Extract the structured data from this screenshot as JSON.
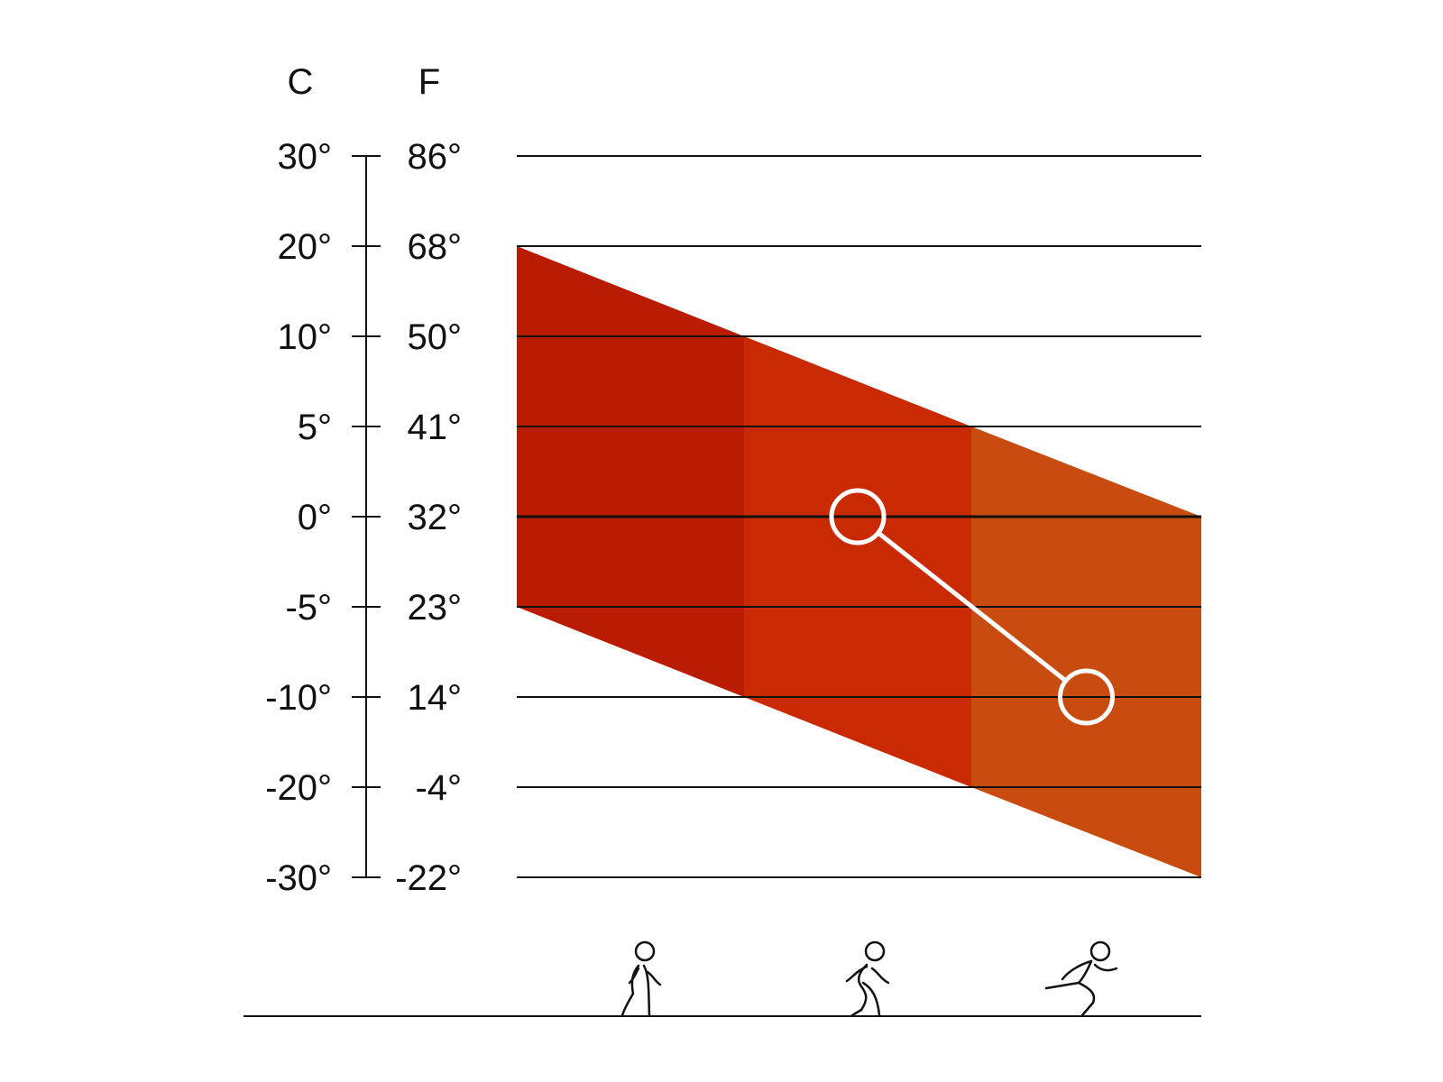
{
  "colors": {
    "band_low": "#b91c03",
    "band_mid": "#c92a03",
    "band_high": "#c84c10",
    "lines": "#111111",
    "marker": "#ffffff"
  },
  "chart_data": {
    "type": "area",
    "title": "",
    "scale_headers": {
      "celsius": "C",
      "fahrenheit": "F"
    },
    "levels": [
      {
        "c": "30°",
        "f": "86°"
      },
      {
        "c": "20°",
        "f": "68°"
      },
      {
        "c": "10°",
        "f": "50°"
      },
      {
        "c": "5°",
        "f": "41°"
      },
      {
        "c": "0°",
        "f": "32°"
      },
      {
        "c": "-5°",
        "f": "23°"
      },
      {
        "c": "-10°",
        "f": "14°"
      },
      {
        "c": "-20°",
        "f": "-4°"
      },
      {
        "c": "-30°",
        "f": "-22°"
      }
    ],
    "activities": [
      {
        "icon": "walking-person-icon",
        "range_top_c": [
          20,
          10
        ],
        "range_bottom_c": [
          -5,
          -10
        ]
      },
      {
        "icon": "jogging-person-icon",
        "range_top_c": [
          10,
          5
        ],
        "range_bottom_c": [
          -10,
          -20
        ]
      },
      {
        "icon": "running-person-icon",
        "range_top_c": [
          5,
          0
        ],
        "range_bottom_c": [
          -20,
          -30
        ]
      }
    ],
    "markers": [
      {
        "activity": 1,
        "c": 0
      },
      {
        "activity": 2,
        "c": -10
      }
    ],
    "grid": true
  }
}
